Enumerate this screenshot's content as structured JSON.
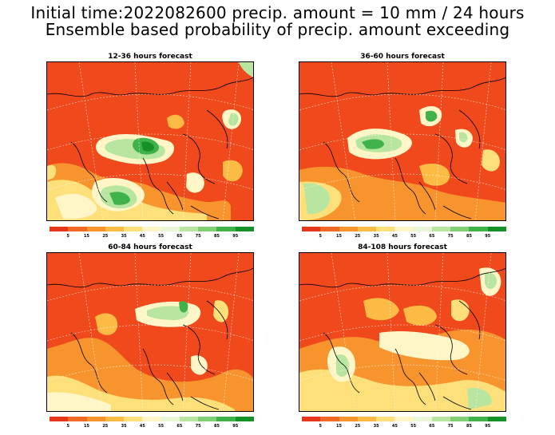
{
  "header": {
    "line1": "Initial time:2022082600 precip. amount = 10 mm / 24 hours",
    "line2": "Ensemble based probability of precip. amount exceeding"
  },
  "panels": [
    {
      "title": "12-36 hours forecast"
    },
    {
      "title": "36-60 hours forecast"
    },
    {
      "title": "60-84 hours forecast"
    },
    {
      "title": "84-108 hours forecast"
    }
  ],
  "colorbar": {
    "labels": [
      "5",
      "15",
      "25",
      "35",
      "45",
      "55",
      "65",
      "75",
      "85",
      "95"
    ],
    "colors": [
      "#e8361a",
      "#f06a26",
      "#f7942e",
      "#fbbb45",
      "#fde07a",
      "#fff6c8",
      "#e9f6d8",
      "#b8e6a0",
      "#7fd072",
      "#3fb34a",
      "#149127"
    ]
  },
  "palette": {
    "base": "#f04a1c",
    "orange": "#f7942e",
    "yellow": "#fde07a",
    "cream": "#fff6c8",
    "lightgreen": "#b8e6a0",
    "green": "#3fb34a"
  }
}
